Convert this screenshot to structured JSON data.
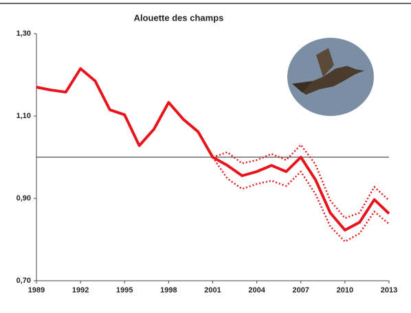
{
  "chart_data": {
    "type": "line",
    "title": "Alouette des champs",
    "x": [
      1989,
      1990,
      1991,
      1992,
      1993,
      1994,
      1995,
      1996,
      1997,
      1998,
      1999,
      2000,
      2001,
      2002,
      2003,
      2004,
      2005,
      2006,
      2007,
      2008,
      2009,
      2010,
      2011,
      2012,
      2013
    ],
    "series": [
      {
        "color": "#e8141b",
        "dash": "solid",
        "values": [
          1.17,
          1.163,
          1.158,
          1.215,
          1.185,
          1.115,
          1.103,
          1.028,
          1.068,
          1.133,
          1.092,
          1.062,
          1.0,
          0.98,
          0.955,
          0.965,
          0.98,
          0.965,
          1.0,
          0.945,
          0.865,
          0.823,
          0.842,
          0.897,
          0.863
        ]
      },
      {
        "color": "#e8141b",
        "dash": "dotted",
        "values": [
          null,
          null,
          null,
          null,
          null,
          null,
          null,
          null,
          null,
          null,
          null,
          null,
          1.0,
          1.012,
          0.985,
          0.993,
          1.008,
          0.993,
          1.03,
          0.982,
          0.895,
          0.852,
          0.865,
          0.928,
          0.895
        ]
      },
      {
        "color": "#e8141b",
        "dash": "dotted",
        "values": [
          null,
          null,
          null,
          null,
          null,
          null,
          null,
          null,
          null,
          null,
          null,
          null,
          1.0,
          0.948,
          0.923,
          0.935,
          0.943,
          0.93,
          0.965,
          0.91,
          0.832,
          0.795,
          0.815,
          0.868,
          0.838
        ]
      }
    ],
    "xlim": [
      1989,
      2013
    ],
    "xticks": [
      1989,
      1992,
      1995,
      1998,
      2001,
      2004,
      2007,
      2010,
      2013
    ],
    "ylim": [
      0.7,
      1.3
    ],
    "yticks": [
      {
        "value": 0.7,
        "label": "0,70"
      },
      {
        "value": 0.9,
        "label": "0,90"
      },
      {
        "value": 1.1,
        "label": "1,10"
      },
      {
        "value": 1.3,
        "label": "1,30"
      }
    ],
    "hline": 1.0,
    "grid": false
  }
}
